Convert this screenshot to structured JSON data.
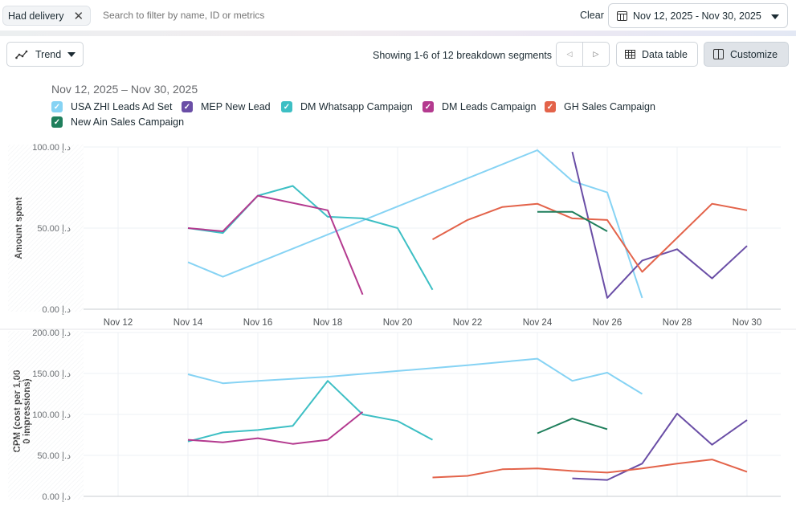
{
  "filters": {
    "chip_label": "Had delivery",
    "search_placeholder": "Search to filter by name, ID or metrics",
    "clear_label": "Clear",
    "date_range": "Nov 12, 2025 - Nov 30, 2025"
  },
  "toolbar": {
    "view_label": "Trend",
    "showing_text": "Showing 1-6 of 12 breakdown segments",
    "prev_glyph": "◁",
    "next_glyph": "▷",
    "data_table_label": "Data table",
    "customize_label": "Customize"
  },
  "chart_header": {
    "range_title": "Nov 12, 2025 – Nov 30, 2025",
    "check_glyph": "✓"
  },
  "legend": [
    {
      "name": "USA ZHI Leads Ad Set",
      "color": "#86d3f4"
    },
    {
      "name": "MEP New Lead",
      "color": "#6a4ea6"
    },
    {
      "name": "DM Whatsapp Campaign",
      "color": "#3dbfc4"
    },
    {
      "name": "DM Leads Campaign",
      "color": "#b43a8f"
    },
    {
      "name": "GH Sales Campaign",
      "color": "#e3634a"
    },
    {
      "name": "New Ain Sales Campaign",
      "color": "#1f7f5c"
    }
  ],
  "chart_data": [
    {
      "type": "line",
      "title": "",
      "xlabel": "",
      "ylabel": "Amount spent",
      "ylim": [
        0,
        100
      ],
      "yticks": [
        "0.00 د.إ",
        "50.00 د.إ",
        "100.00 د.إ"
      ],
      "ytick_values": [
        0,
        50,
        100
      ],
      "xlim": [
        12,
        30
      ],
      "xticks": [
        "Nov 12",
        "Nov 14",
        "Nov 16",
        "Nov 18",
        "Nov 20",
        "Nov 22",
        "Nov 24",
        "Nov 26",
        "Nov 28",
        "Nov 30"
      ],
      "xtick_values": [
        12,
        14,
        16,
        18,
        20,
        22,
        24,
        26,
        28,
        30
      ],
      "grid": true,
      "legend_position": "top-left",
      "series": [
        {
          "name": "USA ZHI Leads Ad Set",
          "x": [
            14,
            15,
            24,
            25,
            26,
            27
          ],
          "values": [
            29,
            20,
            98,
            79,
            72,
            7
          ]
        },
        {
          "name": "MEP New Lead",
          "x": [
            25,
            26,
            27,
            28,
            29,
            30
          ],
          "values": [
            97,
            7,
            30,
            37,
            19,
            39
          ]
        },
        {
          "name": "DM Whatsapp Campaign",
          "x": [
            14,
            15,
            16,
            17,
            18,
            19,
            20,
            21
          ],
          "values": [
            50,
            47,
            70,
            76,
            57,
            56,
            50,
            12
          ]
        },
        {
          "name": "DM Leads Campaign",
          "x": [
            14,
            15,
            16,
            18,
            19
          ],
          "values": [
            50,
            48,
            70,
            61,
            9
          ]
        },
        {
          "name": "GH Sales Campaign",
          "x": [
            21,
            22,
            23,
            24,
            25,
            26,
            27,
            29,
            30
          ],
          "values": [
            43,
            55,
            63,
            65,
            56,
            55,
            23,
            65,
            61
          ]
        },
        {
          "name": "New Ain Sales Campaign",
          "x": [
            24,
            25,
            26
          ],
          "values": [
            60,
            60,
            48
          ]
        }
      ]
    },
    {
      "type": "line",
      "title": "",
      "xlabel": "",
      "ylabel": "CPM (cost per 1,00\n0 impressions)",
      "ylabel_lines": [
        "CPM (cost per 1,00",
        "0 impressions)"
      ],
      "ylim": [
        0,
        200
      ],
      "yticks": [
        "0.00 د.إ",
        "50.00 د.إ",
        "100.00 د.إ",
        "150.00 د.إ",
        "200.00 د.إ"
      ],
      "ytick_values": [
        0,
        50,
        100,
        150,
        200
      ],
      "xlim": [
        12,
        30
      ],
      "grid": true,
      "series": [
        {
          "name": "USA ZHI Leads Ad Set",
          "x": [
            14,
            15,
            16,
            18,
            20,
            22,
            24,
            25,
            26,
            27
          ],
          "values": [
            149,
            138,
            141,
            146,
            153,
            160,
            168,
            141,
            151,
            125
          ]
        },
        {
          "name": "MEP New Lead",
          "x": [
            25,
            26,
            27,
            28,
            29,
            30
          ],
          "values": [
            22,
            20,
            40,
            101,
            63,
            93
          ]
        },
        {
          "name": "DM Whatsapp Campaign",
          "x": [
            14,
            15,
            16,
            17,
            18,
            19,
            20,
            21
          ],
          "values": [
            67,
            78,
            81,
            86,
            141,
            100,
            92,
            69
          ]
        },
        {
          "name": "DM Leads Campaign",
          "x": [
            14,
            15,
            16,
            17,
            18,
            19
          ],
          "values": [
            69,
            66,
            71,
            64,
            69,
            103
          ]
        },
        {
          "name": "GH Sales Campaign",
          "x": [
            21,
            22,
            23,
            24,
            25,
            26,
            27,
            28,
            29,
            30
          ],
          "values": [
            23,
            25,
            33,
            34,
            31,
            29,
            34,
            40,
            45,
            30
          ]
        },
        {
          "name": "New Ain Sales Campaign",
          "x": [
            24,
            25,
            26
          ],
          "values": [
            77,
            95,
            82
          ]
        }
      ]
    }
  ]
}
